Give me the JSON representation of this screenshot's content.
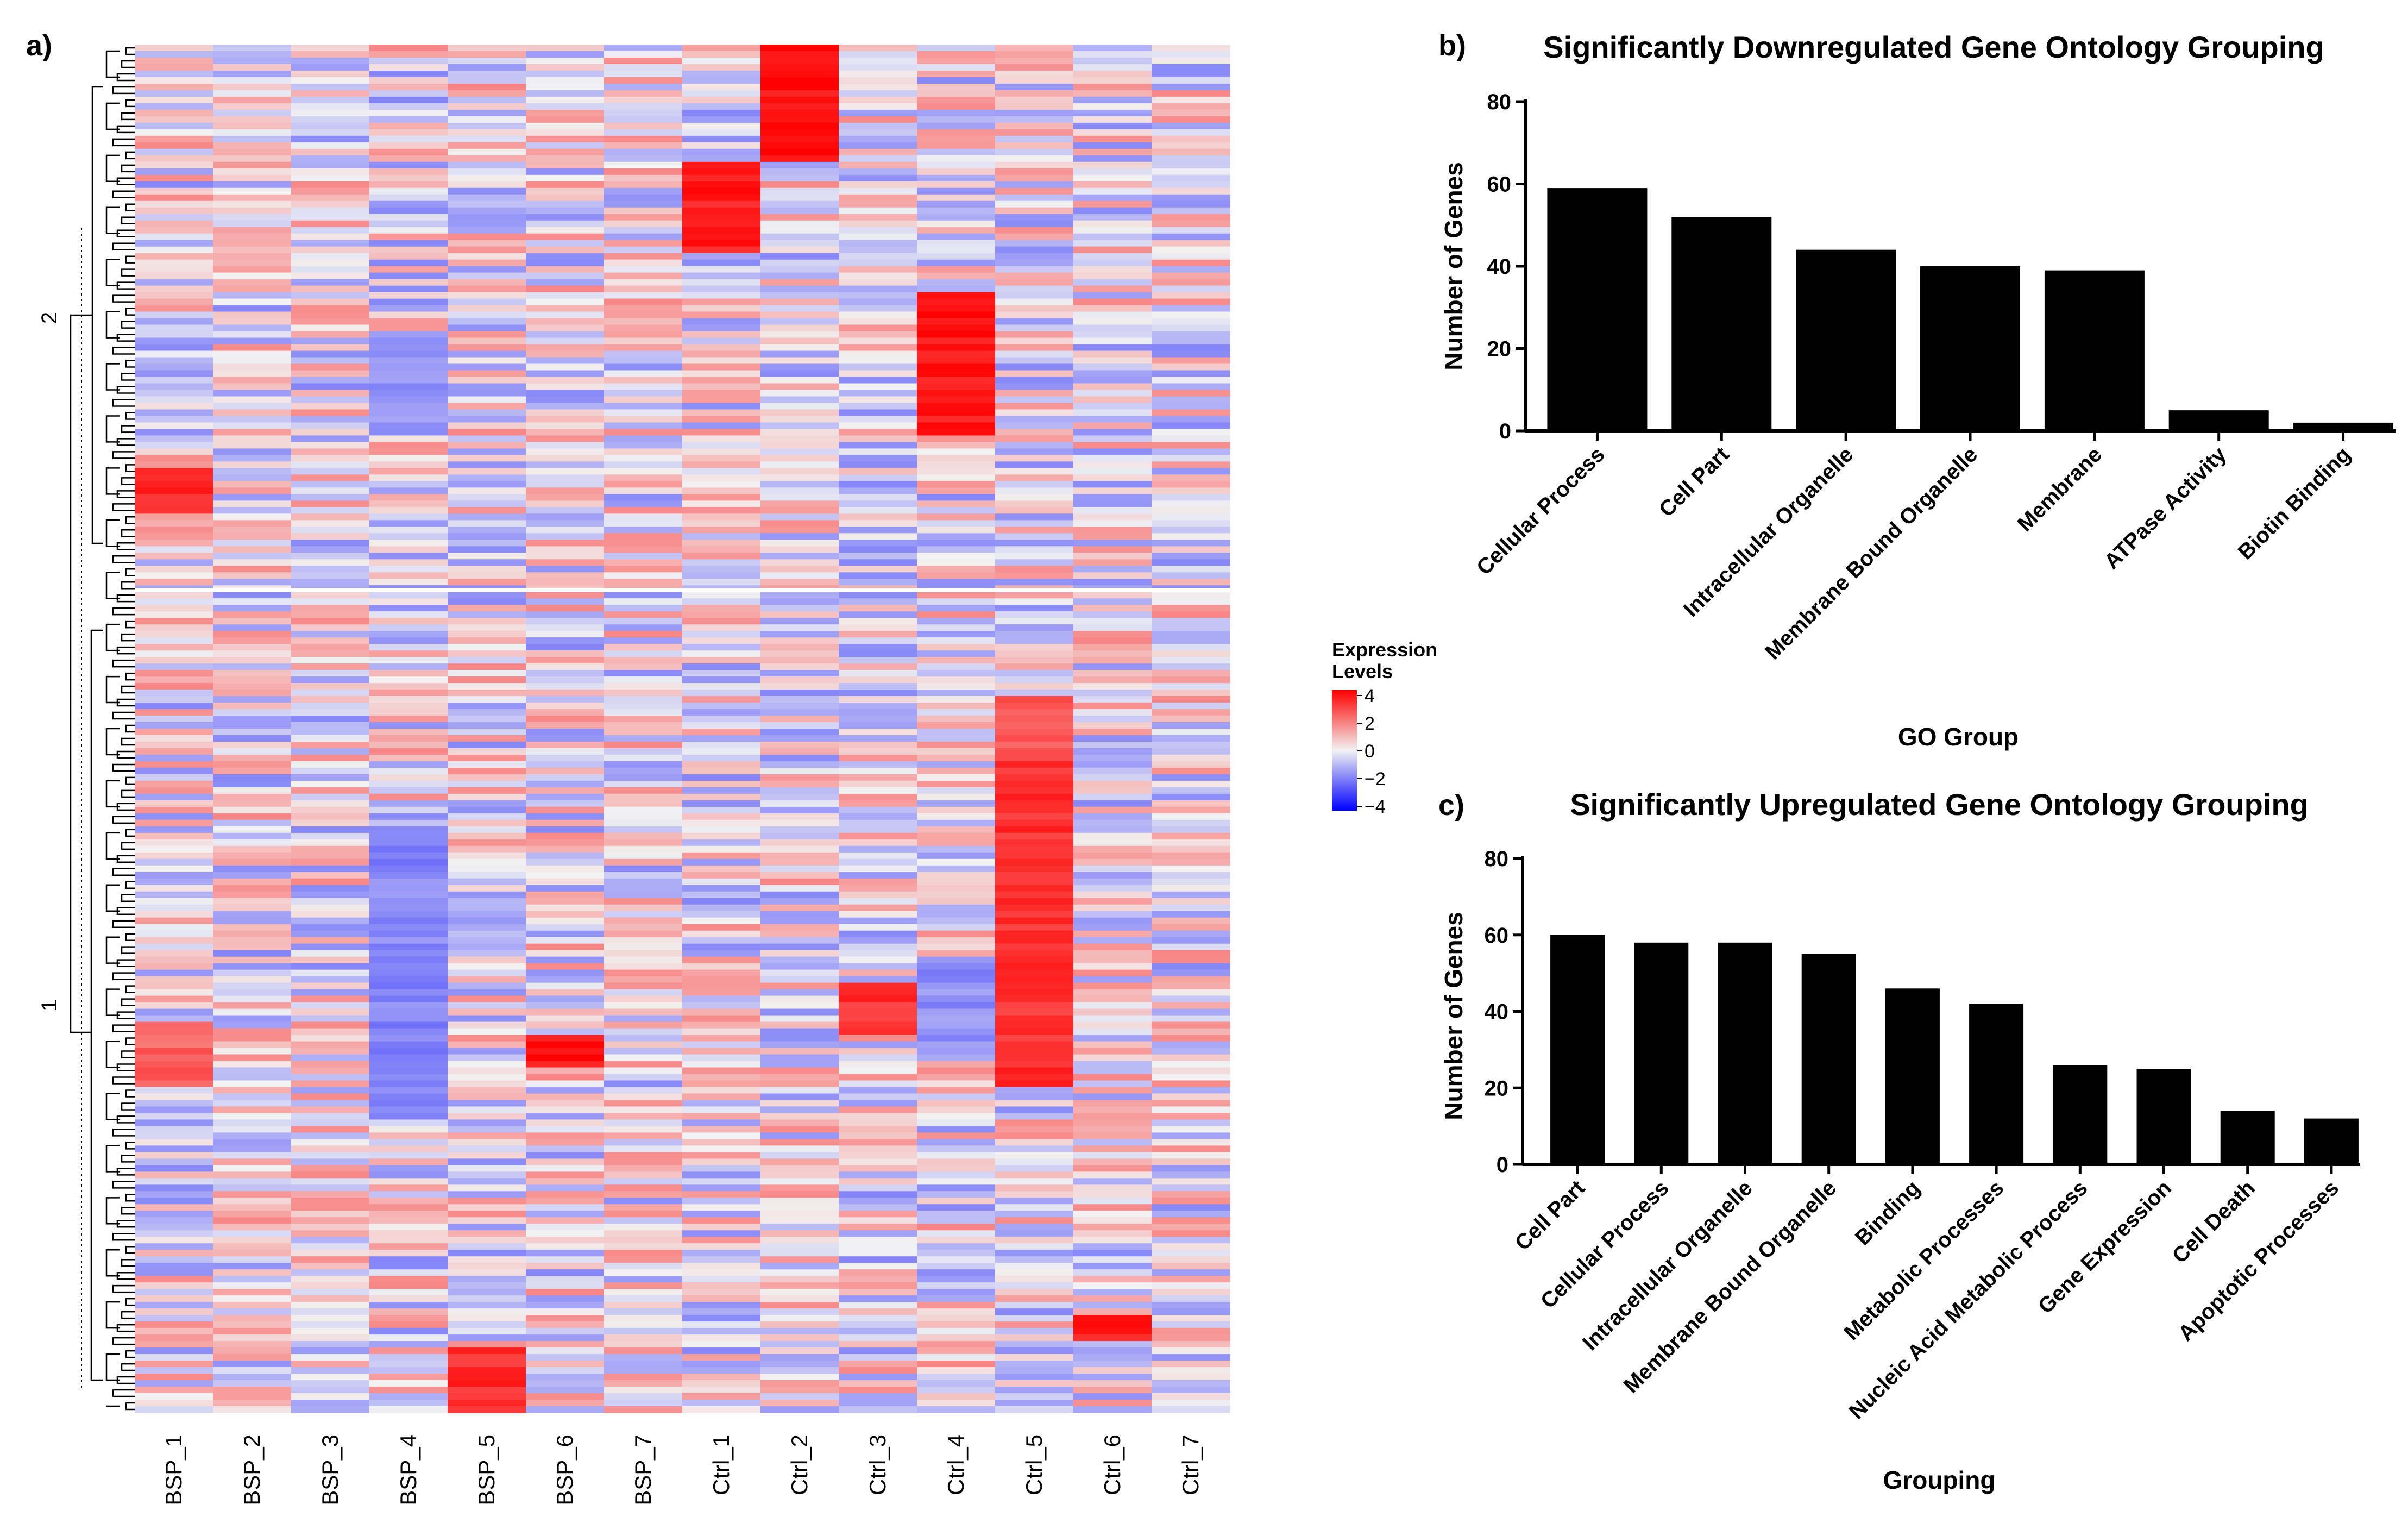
{
  "panels": {
    "a_label": "a)",
    "b_label": "b)",
    "c_label": "c)"
  },
  "heatmap": {
    "columns": [
      "BSP_1",
      "BSP_2",
      "BSP_3",
      "BSP_4",
      "BSP_5",
      "BSP_6",
      "BSP_7",
      "Ctrl_1",
      "Ctrl_2",
      "Ctrl_3",
      "Ctrl_4",
      "Ctrl_5",
      "Ctrl_6",
      "Ctrl_7"
    ],
    "cluster_labels": [
      "2",
      "1"
    ],
    "legend": {
      "title_line1": "Expression",
      "title_line2": "Levels",
      "ticks": [
        "4",
        "2",
        "0",
        "−2",
        "−4"
      ],
      "low_color": "#0000ff",
      "mid_color": "#f2f2f2",
      "high_color": "#ff0000"
    }
  },
  "chart_data": [
    {
      "type": "bar",
      "title": "Significantly Downregulated Gene Ontology Grouping",
      "xlabel": "GO Group",
      "ylabel": "Number of Genes",
      "ylim": [
        0,
        80
      ],
      "yticks": [
        "0",
        "20",
        "40",
        "60",
        "80"
      ],
      "categories": [
        "Cellular Process",
        "Cell Part",
        "Intracellular Organelle",
        "Membrane Bound Organelle",
        "Membrane",
        "ATPase Activity",
        "Biotin Binding"
      ],
      "values": [
        59,
        52,
        44,
        40,
        39,
        5,
        2
      ]
    },
    {
      "type": "bar",
      "title": "Significantly Upregulated Gene Ontology Grouping",
      "xlabel": "Grouping",
      "ylabel": "Number of Genes",
      "ylim": [
        0,
        80
      ],
      "yticks": [
        "0",
        "20",
        "40",
        "60",
        "80"
      ],
      "categories": [
        "Cell Part",
        "Cellular Process",
        "Intracellular Organelle",
        "Membrane Bound Organelle",
        "Binding",
        "Metabolic Processes",
        "Nucleic Acid Metabolic Process",
        "Gene Expression",
        "Cell Death",
        "Apoptotic Processes"
      ],
      "values": [
        60,
        58,
        58,
        55,
        46,
        42,
        26,
        25,
        14,
        12
      ]
    }
  ]
}
